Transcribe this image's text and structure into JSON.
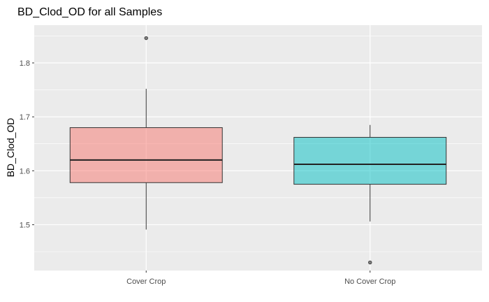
{
  "chart_data": {
    "type": "boxplot",
    "title": "BD_Clod_OD for all Samples",
    "xlabel": "",
    "ylabel": "BD_Clod_OD",
    "ylim": [
      1.415,
      1.87
    ],
    "y_ticks": [
      1.5,
      1.6,
      1.7,
      1.8
    ],
    "y_tick_labels": [
      "1.5",
      "1.6",
      "1.7",
      "1.8"
    ],
    "grid": true,
    "legend": "none",
    "categories": [
      "Cover Crop",
      "No Cover Crop"
    ],
    "boxes": [
      {
        "category": "Cover Crop",
        "fill": "#f8766d",
        "whisker_low": 1.491,
        "q1": 1.578,
        "median": 1.62,
        "q3": 1.68,
        "whisker_high": 1.752,
        "outliers": [
          1.846
        ]
      },
      {
        "category": "No Cover Crop",
        "fill": "#00bfc4",
        "whisker_low": 1.506,
        "q1": 1.575,
        "median": 1.612,
        "q3": 1.662,
        "whisker_high": 1.685,
        "outliers": [
          1.43
        ]
      }
    ],
    "colors": {
      "panel_bg": "#ebebeb",
      "grid": "#ffffff"
    }
  }
}
